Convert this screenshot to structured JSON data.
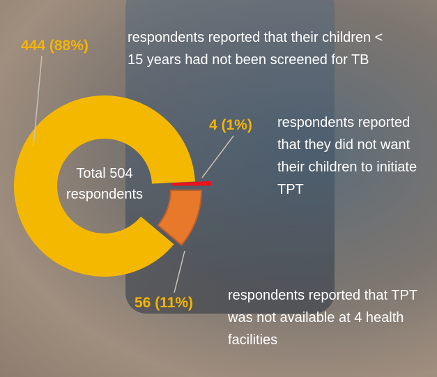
{
  "chart_data": {
    "type": "pie",
    "center_label": "Total 504 respondents",
    "categories": [
      "respondents reported that their children < 15 years  had not been screened for TB",
      "respondents reported that  they did not want their children to initiate TPT",
      "respondents reported that TPT was not available at 4 health facilities"
    ],
    "values": [
      444,
      4,
      56
    ],
    "value_labels": [
      "444 (88%)",
      "4 (1%)",
      "56 (11%)"
    ],
    "colors": [
      "#f5b800",
      "#e8141b",
      "#e8782a"
    ]
  }
}
